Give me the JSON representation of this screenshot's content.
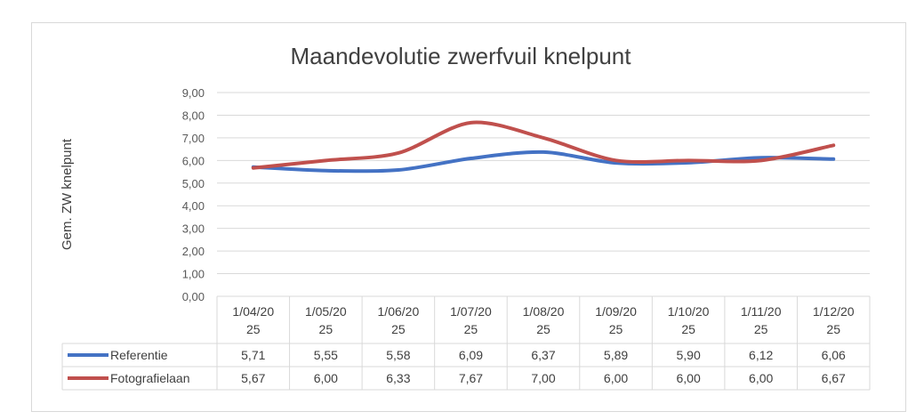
{
  "chart_data": {
    "type": "line",
    "title": "Maandevolutie zwerfvuil knelpunt",
    "xlabel": "",
    "ylabel": "Gem. ZW knelpunt",
    "ylim": [
      0,
      9
    ],
    "y_ticks": [
      "0,00",
      "1,00",
      "2,00",
      "3,00",
      "4,00",
      "5,00",
      "6,00",
      "7,00",
      "8,00",
      "9,00"
    ],
    "categories": [
      [
        "1/04/20",
        "25"
      ],
      [
        "1/05/20",
        "25"
      ],
      [
        "1/06/20",
        "25"
      ],
      [
        "1/07/20",
        "25"
      ],
      [
        "1/08/20",
        "25"
      ],
      [
        "1/09/20",
        "25"
      ],
      [
        "1/10/20",
        "25"
      ],
      [
        "1/11/20",
        "25"
      ],
      [
        "1/12/20",
        "25"
      ]
    ],
    "grid": true,
    "legend": "data-table",
    "series": [
      {
        "name": "Referentie",
        "color": "#4472c4",
        "values": [
          5.71,
          5.55,
          5.58,
          6.09,
          6.37,
          5.89,
          5.9,
          6.12,
          6.06
        ],
        "labels": [
          "5,71",
          "5,55",
          "5,58",
          "6,09",
          "6,37",
          "5,89",
          "5,90",
          "6,12",
          "6,06"
        ]
      },
      {
        "name": "Fotografielaan",
        "color": "#c0504d",
        "values": [
          5.67,
          6.0,
          6.33,
          7.67,
          7.0,
          6.0,
          6.0,
          6.0,
          6.67
        ],
        "labels": [
          "5,67",
          "6,00",
          "6,33",
          "7,67",
          "7,00",
          "6,00",
          "6,00",
          "6,00",
          "6,67"
        ]
      }
    ]
  }
}
